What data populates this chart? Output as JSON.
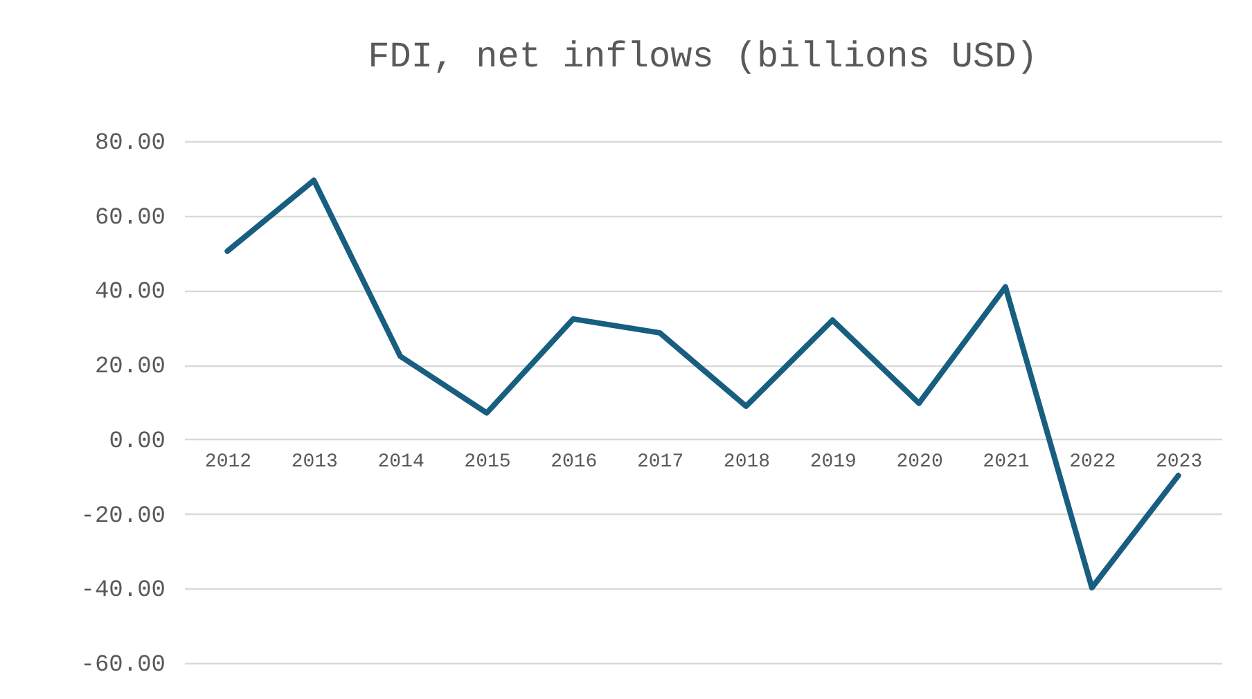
{
  "chart_data": {
    "type": "line",
    "title": "FDI, net inflows (billions USD)",
    "categories": [
      "2012",
      "2013",
      "2014",
      "2015",
      "2016",
      "2017",
      "2018",
      "2019",
      "2020",
      "2021",
      "2022",
      "2023"
    ],
    "series": [
      {
        "color": "#175e80",
        "values": [
          50.5,
          69.5,
          22.3,
          7.1,
          32.3,
          28.6,
          8.9,
          32.0,
          9.7,
          40.9,
          -39.8,
          -9.7
        ]
      }
    ],
    "ylim": [
      -60,
      80
    ],
    "yticks": [
      {
        "value": -60,
        "label": "-60.00"
      },
      {
        "value": -40,
        "label": "-40.00"
      },
      {
        "value": -20,
        "label": "-20.00"
      },
      {
        "value": 0,
        "label": "0.00"
      },
      {
        "value": 20,
        "label": "20.00"
      },
      {
        "value": 40,
        "label": "40.00"
      },
      {
        "value": 60,
        "label": "60.00"
      },
      {
        "value": 80,
        "label": "80.00"
      }
    ],
    "grid": "y",
    "marker": "none",
    "line_style": "solid"
  }
}
